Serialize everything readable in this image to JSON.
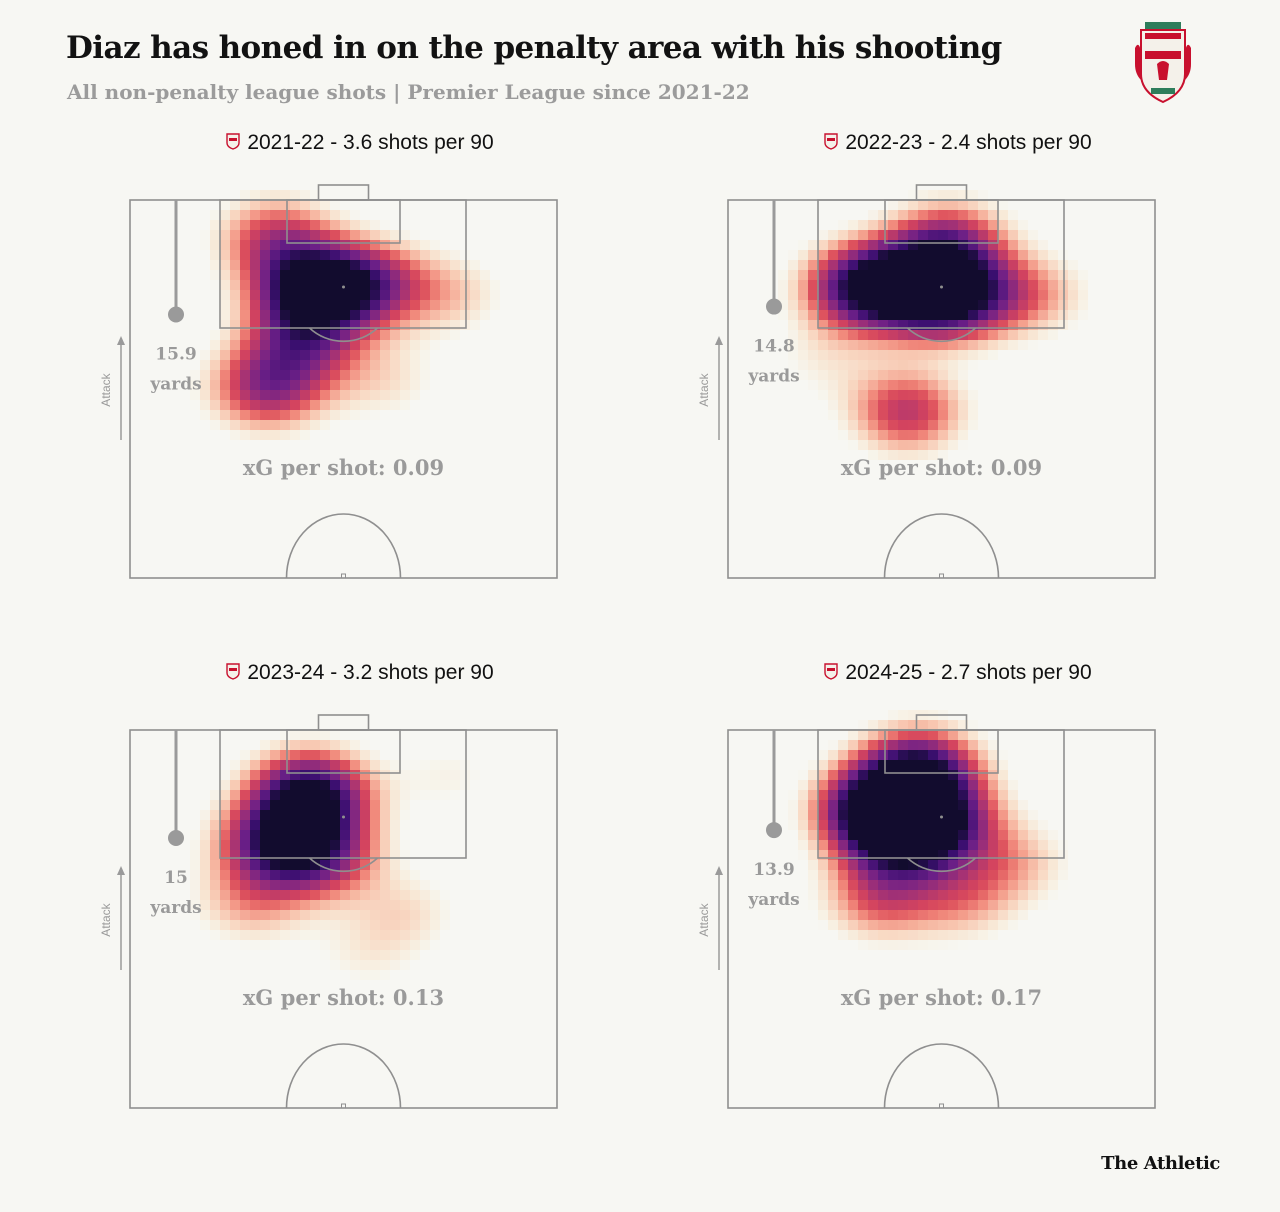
{
  "header": {
    "title": "Diaz has honed in on the penalty area with his shooting",
    "subtitle": "All non-penalty league shots | Premier League since 2021-22"
  },
  "brand": "The Athletic",
  "colors": {
    "background": "#f7f7f3",
    "pitch_lines": "#8f8f8f",
    "annotation": "#9a9a9a",
    "crest_red": "#c8102e",
    "heat_scale": [
      "#fffcc4",
      "#fddc8f",
      "#fb9e6e",
      "#ef6a59",
      "#d3435f",
      "#9c2f78",
      "#6b1f87",
      "#3b0f70",
      "#120c2e"
    ]
  },
  "chart_data": [
    {
      "type": "heatmap",
      "title": "2021-22 - 3.6 shots per 90",
      "season": "2021-22",
      "shots_per_90": 3.6,
      "avg_shot_distance_yards": 15.9,
      "distance_number": "15.9",
      "distance_unit": "yards",
      "attack_label": "Attack",
      "xg_label": "xG per shot: 0.09",
      "xg_per_shot": 0.09,
      "hotspots": [
        {
          "x": 0.43,
          "y": 0.24,
          "intensity": 1.0
        },
        {
          "x": 0.56,
          "y": 0.22,
          "intensity": 0.55
        },
        {
          "x": 0.34,
          "y": 0.1,
          "intensity": 0.5
        },
        {
          "x": 0.4,
          "y": 0.38,
          "intensity": 0.5
        },
        {
          "x": 0.32,
          "y": 0.5,
          "intensity": 0.6
        },
        {
          "x": 0.6,
          "y": 0.48,
          "intensity": 0.2
        },
        {
          "x": 0.75,
          "y": 0.25,
          "intensity": 0.25
        }
      ]
    },
    {
      "type": "heatmap",
      "title": "2022-23 - 2.4 shots per 90",
      "season": "2022-23",
      "shots_per_90": 2.4,
      "avg_shot_distance_yards": 14.8,
      "distance_number": "14.8",
      "distance_unit": "yards",
      "attack_label": "Attack",
      "xg_label": "xG per shot: 0.09",
      "xg_per_shot": 0.09,
      "hotspots": [
        {
          "x": 0.45,
          "y": 0.23,
          "intensity": 1.0
        },
        {
          "x": 0.31,
          "y": 0.23,
          "intensity": 0.8
        },
        {
          "x": 0.55,
          "y": 0.26,
          "intensity": 0.6
        },
        {
          "x": 0.52,
          "y": 0.11,
          "intensity": 0.55
        },
        {
          "x": 0.42,
          "y": 0.56,
          "intensity": 0.55
        },
        {
          "x": 0.22,
          "y": 0.42,
          "intensity": 0.15
        },
        {
          "x": 0.72,
          "y": 0.25,
          "intensity": 0.3
        }
      ]
    },
    {
      "type": "heatmap",
      "title": "2023-24 - 3.2 shots per 90",
      "season": "2023-24",
      "shots_per_90": 3.2,
      "avg_shot_distance_yards": 15,
      "distance_number": "15",
      "distance_unit": "yards",
      "attack_label": "Attack",
      "xg_label": "xG per shot: 0.13",
      "xg_per_shot": 0.13,
      "hotspots": [
        {
          "x": 0.42,
          "y": 0.17,
          "intensity": 1.0
        },
        {
          "x": 0.34,
          "y": 0.3,
          "intensity": 0.7
        },
        {
          "x": 0.45,
          "y": 0.33,
          "intensity": 0.55
        },
        {
          "x": 0.28,
          "y": 0.46,
          "intensity": 0.3
        },
        {
          "x": 0.65,
          "y": 0.48,
          "intensity": 0.2
        },
        {
          "x": 0.55,
          "y": 0.6,
          "intensity": 0.15
        },
        {
          "x": 0.75,
          "y": 0.12,
          "intensity": 0.15
        }
      ]
    },
    {
      "type": "heatmap",
      "title": "2024-25 - 2.7 shots per 90",
      "season": "2024-25",
      "shots_per_90": 2.7,
      "avg_shot_distance_yards": 13.9,
      "distance_number": "13.9",
      "distance_unit": "yards",
      "attack_label": "Attack",
      "xg_label": "xG per shot: 0.17",
      "xg_per_shot": 0.17,
      "hotspots": [
        {
          "x": 0.35,
          "y": 0.21,
          "intensity": 1.0
        },
        {
          "x": 0.45,
          "y": 0.11,
          "intensity": 0.9
        },
        {
          "x": 0.5,
          "y": 0.25,
          "intensity": 0.65
        },
        {
          "x": 0.4,
          "y": 0.3,
          "intensity": 0.55
        },
        {
          "x": 0.35,
          "y": 0.45,
          "intensity": 0.4
        },
        {
          "x": 0.55,
          "y": 0.45,
          "intensity": 0.3
        },
        {
          "x": 0.68,
          "y": 0.35,
          "intensity": 0.25
        }
      ]
    }
  ]
}
